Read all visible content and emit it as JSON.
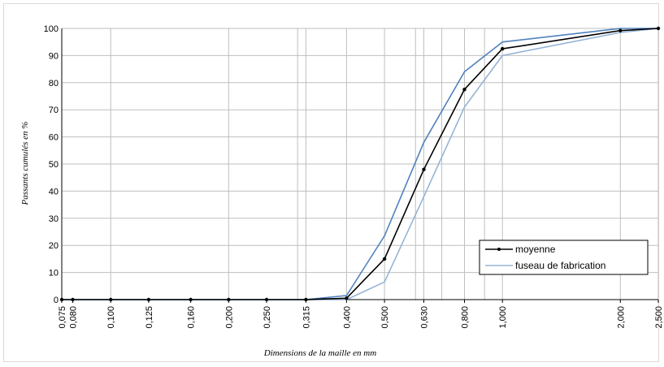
{
  "chart_data": {
    "type": "line",
    "xscale": "log",
    "xlim": [
      0.075,
      2.5
    ],
    "ylim": [
      0,
      100
    ],
    "grid": true,
    "xlabel": "Dimensions de la maille en mm",
    "ylabel": "Passants cumulés en %",
    "legend_position": "bottom-right",
    "x_ticks": [
      0.075,
      0.08,
      0.1,
      0.125,
      0.16,
      0.2,
      0.25,
      0.315,
      0.4,
      0.5,
      0.63,
      0.8,
      1.0,
      2.0,
      2.5
    ],
    "x_tick_labels": [
      "0,075",
      "0,080",
      "0,100",
      "0,125",
      "0,160",
      "0,200",
      "0,250",
      "0,315",
      "0,400",
      "0,500",
      "0,630",
      "0,800",
      "1,000",
      "2,000",
      "2,500"
    ],
    "y_ticks": [
      0,
      10,
      20,
      30,
      40,
      50,
      60,
      70,
      80,
      90,
      100
    ],
    "x_gridlines": [
      0.075,
      0.1,
      0.2,
      0.3,
      0.315,
      0.4,
      0.5,
      0.6,
      0.63,
      0.7,
      0.8,
      0.9,
      1.0,
      2.0,
      2.5
    ],
    "series": [
      {
        "name": "moyenne",
        "color": "#000000",
        "markers": true,
        "points": [
          [
            0.075,
            0
          ],
          [
            0.08,
            0
          ],
          [
            0.1,
            0
          ],
          [
            0.125,
            0
          ],
          [
            0.16,
            0
          ],
          [
            0.2,
            0
          ],
          [
            0.25,
            0
          ],
          [
            0.315,
            0
          ],
          [
            0.4,
            0.5
          ],
          [
            0.5,
            15
          ],
          [
            0.63,
            48
          ],
          [
            0.8,
            77.5
          ],
          [
            1.0,
            92.5
          ],
          [
            2.0,
            99.2
          ],
          [
            2.5,
            100
          ]
        ]
      },
      {
        "name": "fuseau de fabrication",
        "color": "#4f81bd",
        "markers": false,
        "points": [
          [
            0.075,
            0
          ],
          [
            0.315,
            0
          ],
          [
            0.4,
            1.5
          ],
          [
            0.5,
            23.5
          ],
          [
            0.63,
            58
          ],
          [
            0.8,
            84
          ],
          [
            1.0,
            95
          ],
          [
            2.0,
            100
          ],
          [
            2.5,
            100
          ]
        ]
      },
      {
        "name": "",
        "color": "#95b3d7",
        "markers": false,
        "points": [
          [
            0.075,
            0
          ],
          [
            0.4,
            0
          ],
          [
            0.5,
            6.5
          ],
          [
            0.63,
            38
          ],
          [
            0.8,
            71
          ],
          [
            1.0,
            90
          ],
          [
            2.0,
            98.5
          ],
          [
            2.5,
            100
          ]
        ]
      }
    ]
  }
}
